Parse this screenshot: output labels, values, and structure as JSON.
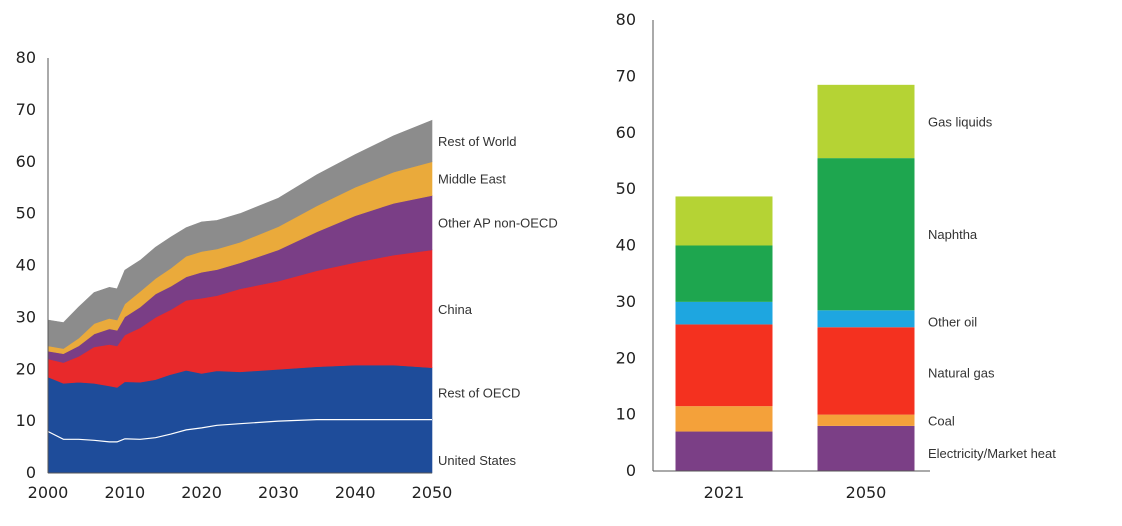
{
  "chart_data": [
    {
      "type": "area",
      "stacked": true,
      "x": [
        2000,
        2002,
        2004,
        2006,
        2008,
        2009,
        2010,
        2012,
        2014,
        2016,
        2018,
        2020,
        2022,
        2025,
        2030,
        2035,
        2040,
        2045,
        2050
      ],
      "ylim": [
        0,
        80
      ],
      "yticks": [
        0,
        10,
        20,
        30,
        40,
        50,
        60,
        70,
        80
      ],
      "xticks": [
        2000,
        2010,
        2020,
        2030,
        2040,
        2050
      ],
      "grid": false,
      "legend": "right-inline",
      "series": [
        {
          "name": "United States",
          "color": "#1e4c9a",
          "values": [
            8,
            6.5,
            6.5,
            6.3,
            6,
            6,
            6.6,
            6.5,
            6.8,
            7.5,
            8.3,
            8.7,
            9.2,
            9.5,
            10,
            10.3,
            10.3,
            10.3,
            10.3
          ]
        },
        {
          "name": "Rest of OECD",
          "color": "#1e4c9a",
          "values": [
            10.5,
            10.8,
            11,
            11,
            10.8,
            10.5,
            11,
            11,
            11.2,
            11.5,
            11.5,
            10.5,
            10.5,
            10,
            10,
            10.2,
            10.5,
            10.5,
            10
          ]
        },
        {
          "name": "China",
          "color": "#e8292b",
          "values": [
            3.5,
            4,
            5,
            7,
            8,
            8,
            9,
            10.5,
            12,
            12.5,
            13.5,
            14.5,
            14.5,
            16,
            17,
            18.5,
            19.8,
            21.2,
            22.7
          ]
        },
        {
          "name": "Other AP non-OECD",
          "color": "#7a3e86",
          "values": [
            1.5,
            1.7,
            2,
            2.5,
            3,
            3,
            3.5,
            4,
            4.5,
            4.5,
            4.5,
            5,
            5,
            5,
            6,
            7.5,
            9,
            10,
            10.5
          ]
        },
        {
          "name": "Middle East",
          "color": "#eaaa3b",
          "values": [
            1,
            1,
            1.5,
            2,
            2,
            2,
            2.5,
            3,
            3,
            3.5,
            4,
            4,
            4,
            4,
            4.5,
            5,
            5.5,
            6,
            6.5
          ]
        },
        {
          "name": "Rest of World",
          "color": "#8c8c8c",
          "values": [
            5,
            5,
            6,
            6,
            6,
            6,
            6.5,
            6,
            6,
            6,
            5.5,
            5.7,
            5.5,
            5.5,
            5.5,
            6,
            6.3,
            7,
            8
          ]
        }
      ]
    },
    {
      "type": "bar",
      "stacked": true,
      "categories": [
        "2021",
        "2050"
      ],
      "ylim": [
        0,
        80
      ],
      "yticks": [
        0,
        10,
        20,
        30,
        40,
        50,
        60,
        70,
        80
      ],
      "grid": false,
      "legend": "right-inline",
      "series": [
        {
          "name": "Electricity/Market heat",
          "color": "#7b3f86",
          "values": [
            7,
            8
          ]
        },
        {
          "name": "Coal",
          "color": "#f4a13a",
          "values": [
            4.5,
            2
          ]
        },
        {
          "name": "Natural gas",
          "color": "#f4311f",
          "values": [
            14.5,
            15.5
          ]
        },
        {
          "name": "Other oil",
          "color": "#1ea6e0",
          "values": [
            4,
            3
          ]
        },
        {
          "name": "Naphtha",
          "color": "#1ea64f",
          "values": [
            10,
            27
          ]
        },
        {
          "name": "Gas liquids",
          "color": "#b5d334",
          "values": [
            8.7,
            13
          ]
        }
      ]
    }
  ]
}
